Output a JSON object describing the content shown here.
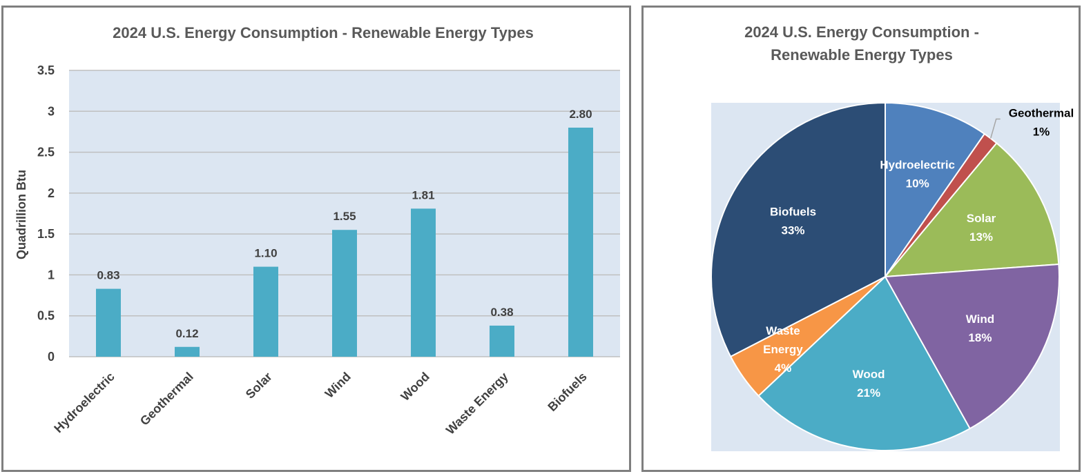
{
  "chart_data": [
    {
      "type": "bar",
      "title": "2024 U.S. Energy Consumption - Renewable Energy Types",
      "ylabel": "Quadrillion Btu",
      "xlabel": "",
      "categories": [
        "Hydroelectric",
        "Geothermal",
        "Solar",
        "Wind",
        "Wood",
        "Waste Energy",
        "Biofuels"
      ],
      "values": [
        0.83,
        0.12,
        1.1,
        1.55,
        1.81,
        0.38,
        2.8
      ],
      "data_labels": [
        "0.83",
        "0.12",
        "1.10",
        "1.55",
        "1.81",
        "0.38",
        "2.80"
      ],
      "ylim": [
        0,
        3.5
      ],
      "yticks": [
        "0",
        "0.5",
        "1",
        "1.5",
        "2",
        "2.5",
        "3",
        "3.5"
      ],
      "grid": true,
      "colors": {
        "bar": "#4bacc6",
        "plot_bg": "#dce6f2",
        "grid": "#bfbfbf"
      }
    },
    {
      "type": "pie",
      "title_lines": [
        "2024 U.S. Energy Consumption -",
        "Renewable Energy Types"
      ],
      "slices": [
        {
          "label": "Hydroelectric",
          "percent_label": "10%",
          "value": 0.83,
          "color": "#4f81bd"
        },
        {
          "label": "Geothermal",
          "percent_label": "1%",
          "value": 0.12,
          "color": "#c0504d"
        },
        {
          "label": "Solar",
          "percent_label": "13%",
          "value": 1.1,
          "color": "#9bbb59"
        },
        {
          "label": "Wind",
          "percent_label": "18%",
          "value": 1.55,
          "color": "#8064a2"
        },
        {
          "label": "Wood",
          "percent_label": "21%",
          "value": 1.81,
          "color": "#4bacc6"
        },
        {
          "label": "Waste Energy",
          "percent_label": "4%",
          "value": 0.38,
          "color": "#f79646"
        },
        {
          "label": "Biofuels",
          "percent_label": "33%",
          "value": 2.8,
          "color": "#2c4d75"
        }
      ],
      "colors": {
        "plot_bg": "#dce6f2"
      }
    }
  ]
}
